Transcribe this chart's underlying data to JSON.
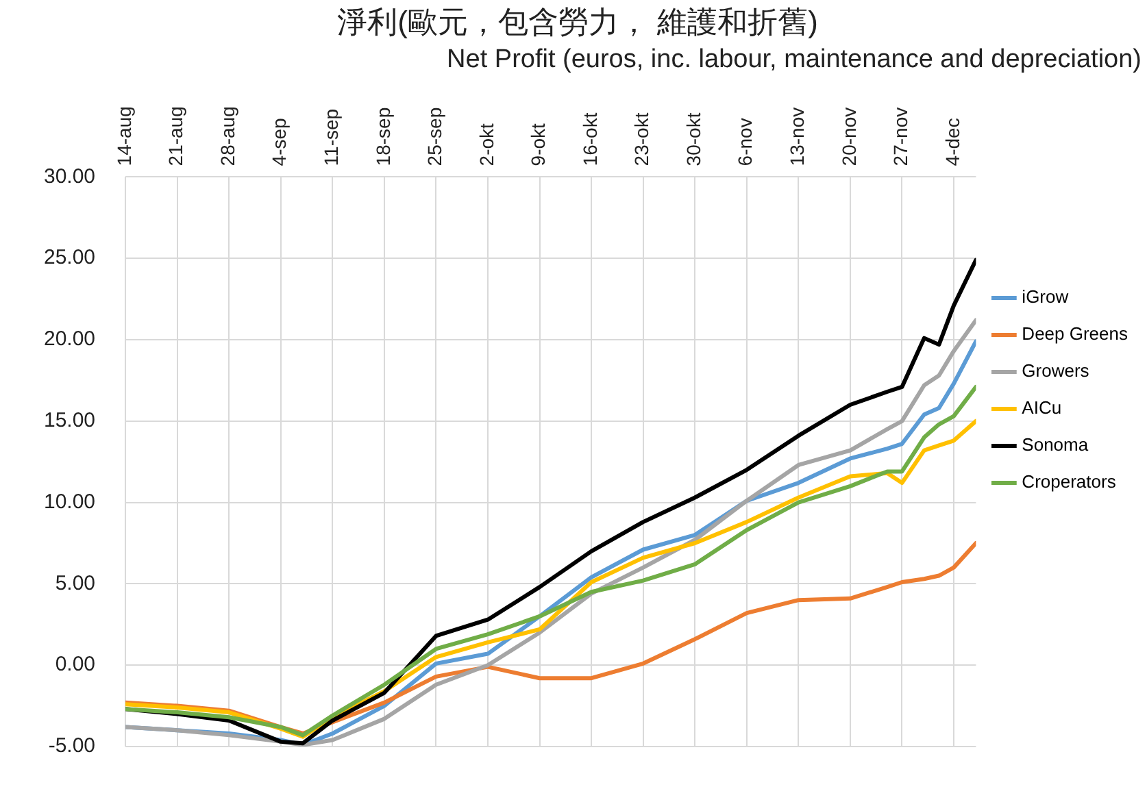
{
  "chart_data": {
    "type": "line",
    "title": "淨利(歐元，包含勞力， 維護和折舊)",
    "subtitle": "Net Profit (euros, inc. labour, maintenance and depreciation)",
    "x": [
      "--08-14",
      "--08-21",
      "--08-28",
      "--09-04",
      "--09-07",
      "--09-11",
      "--09-18",
      "--09-25",
      "--10-02",
      "--10-09",
      "--10-16",
      "--10-23",
      "--10-30",
      "--11-06",
      "--11-13",
      "--11-20",
      "--11-25",
      "--11-27",
      "--11-30",
      "--12-02",
      "--12-04",
      "--12-07"
    ],
    "series": [
      {
        "name": "iGrow",
        "color": "#5b9bd5",
        "values": [
          -3.8,
          -4.0,
          -4.2,
          -4.6,
          -4.9,
          -4.2,
          -2.5,
          0.1,
          0.7,
          3.0,
          5.4,
          7.1,
          8.0,
          10.1,
          11.2,
          12.7,
          13.3,
          13.6,
          15.4,
          15.8,
          17.3,
          19.9
        ]
      },
      {
        "name": "Deep Greens",
        "color": "#ed7d31",
        "values": [
          -2.3,
          -2.5,
          -2.8,
          -3.8,
          -4.2,
          -3.5,
          -2.3,
          -0.7,
          -0.1,
          -0.8,
          -0.8,
          0.1,
          1.6,
          3.2,
          4.0,
          4.1,
          4.8,
          5.1,
          5.3,
          5.5,
          6.0,
          7.5
        ]
      },
      {
        "name": "Growers",
        "color": "#a5a5a5",
        "values": [
          -3.8,
          -4.0,
          -4.3,
          -4.7,
          -4.9,
          -4.6,
          -3.3,
          -1.2,
          0.0,
          2.0,
          4.4,
          6.0,
          7.7,
          10.1,
          12.3,
          13.2,
          14.5,
          15.0,
          17.2,
          17.8,
          19.3,
          21.2
        ]
      },
      {
        "name": "AICu",
        "color": "#ffc000",
        "values": [
          -2.4,
          -2.6,
          -2.9,
          -3.9,
          -4.4,
          -3.2,
          -1.6,
          0.5,
          1.4,
          2.2,
          5.1,
          6.6,
          7.5,
          8.8,
          10.3,
          11.6,
          11.8,
          11.2,
          13.2,
          13.5,
          13.8,
          15.0
        ]
      },
      {
        "name": "Sonoma",
        "color": "#000000",
        "values": [
          -2.7,
          -3.0,
          -3.4,
          -4.7,
          -4.8,
          -3.4,
          -1.7,
          1.8,
          2.8,
          4.8,
          7.0,
          8.8,
          10.3,
          12.0,
          14.1,
          16.0,
          16.8,
          17.1,
          20.1,
          19.7,
          22.1,
          24.9
        ]
      },
      {
        "name": "Croperators",
        "color": "#70ad47",
        "values": [
          -2.7,
          -2.9,
          -3.2,
          -3.8,
          -4.3,
          -3.1,
          -1.2,
          1.0,
          1.9,
          3.0,
          4.5,
          5.2,
          6.2,
          8.3,
          10.0,
          11.0,
          11.9,
          11.9,
          14.0,
          14.8,
          15.3,
          17.1
        ]
      }
    ],
    "xlim": [
      "--08-14",
      "--12-07"
    ],
    "xticks": [
      {
        "value": "--08-14",
        "label": "14-aug"
      },
      {
        "value": "--08-21",
        "label": "21-aug"
      },
      {
        "value": "--08-28",
        "label": "28-aug"
      },
      {
        "value": "--09-04",
        "label": "4-sep"
      },
      {
        "value": "--09-11",
        "label": "11-sep"
      },
      {
        "value": "--09-18",
        "label": "18-sep"
      },
      {
        "value": "--09-25",
        "label": "25-sep"
      },
      {
        "value": "--10-02",
        "label": "2-okt"
      },
      {
        "value": "--10-09",
        "label": "9-okt"
      },
      {
        "value": "--10-16",
        "label": "16-okt"
      },
      {
        "value": "--10-23",
        "label": "23-okt"
      },
      {
        "value": "--10-30",
        "label": "30-okt"
      },
      {
        "value": "--11-06",
        "label": "6-nov"
      },
      {
        "value": "--11-13",
        "label": "13-nov"
      },
      {
        "value": "--11-20",
        "label": "20-nov"
      },
      {
        "value": "--11-27",
        "label": "27-nov"
      },
      {
        "value": "--12-04",
        "label": "4-dec"
      }
    ],
    "ylim": [
      -5,
      30
    ],
    "yticks": [
      {
        "value": -5,
        "label": "-5.00"
      },
      {
        "value": 0,
        "label": "0.00"
      },
      {
        "value": 5,
        "label": "5.00"
      },
      {
        "value": 10,
        "label": "10.00"
      },
      {
        "value": 15,
        "label": "15.00"
      },
      {
        "value": 20,
        "label": "20.00"
      },
      {
        "value": 25,
        "label": "25.00"
      },
      {
        "value": 30,
        "label": "30.00"
      }
    ],
    "grid": true,
    "legend": "right",
    "marker": "none",
    "line_style": "solid"
  }
}
